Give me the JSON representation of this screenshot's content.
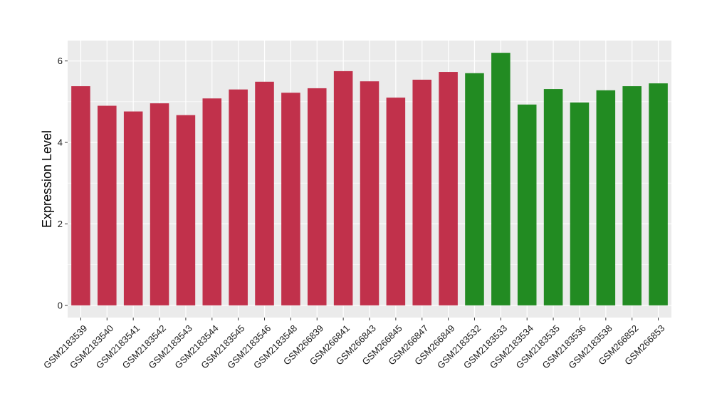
{
  "chart_data": {
    "type": "bar",
    "title": "",
    "xlabel": "",
    "ylabel": "Expression Level",
    "ylim": [
      0,
      6.5
    ],
    "yticks": [
      0,
      2,
      4,
      6
    ],
    "grid": true,
    "legend": "none",
    "categories": [
      "GSM2183539",
      "GSM2183540",
      "GSM2183541",
      "GSM2183542",
      "GSM2183543",
      "GSM2183544",
      "GSM2183545",
      "GSM2183546",
      "GSM2183548",
      "GSM266839",
      "GSM266841",
      "GSM266843",
      "GSM266845",
      "GSM266847",
      "GSM266849",
      "GSM2183532",
      "GSM2183533",
      "GSM2183534",
      "GSM2183535",
      "GSM2183536",
      "GSM2183538",
      "GSM266852",
      "GSM266853"
    ],
    "values": [
      5.38,
      4.9,
      4.76,
      4.96,
      4.67,
      5.08,
      5.3,
      5.49,
      5.22,
      5.33,
      5.75,
      5.5,
      5.1,
      5.54,
      5.73,
      5.7,
      6.2,
      4.93,
      5.31,
      4.98,
      5.28,
      5.38,
      5.45
    ],
    "groups": [
      0,
      0,
      0,
      0,
      0,
      0,
      0,
      0,
      0,
      0,
      0,
      0,
      0,
      0,
      0,
      1,
      1,
      1,
      1,
      1,
      1,
      1,
      1
    ],
    "group_colors": [
      "#c1314b",
      "#228b22"
    ],
    "panel_color": "#ebebeb",
    "grid_color": "#ffffff"
  }
}
